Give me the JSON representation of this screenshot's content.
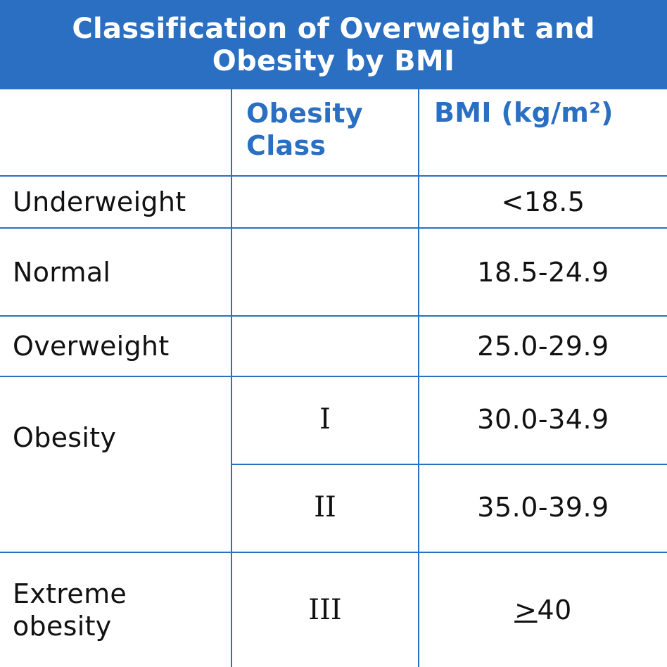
{
  "title": {
    "line1": "Classification of Overweight and",
    "line2": "Obesity by BMI"
  },
  "columns": {
    "category": "",
    "obesity_class_line1": "Obesity",
    "obesity_class_line2": "Class",
    "bmi": "BMI (kg/m²)"
  },
  "rows": [
    {
      "category": "Underweight",
      "class": "",
      "bmi": "<18.5"
    },
    {
      "category": "Normal",
      "class": "",
      "bmi": "18.5-24.9"
    },
    {
      "category": "Overweight",
      "class": "",
      "bmi": "25.0-29.9"
    },
    {
      "category": "Obesity",
      "classes": [
        {
          "class": "I",
          "bmi": "30.0-34.9"
        },
        {
          "class": "II",
          "bmi": "35.0-39.9"
        }
      ]
    },
    {
      "category_line1": "Extreme",
      "category_line2": "obesity",
      "class": "III",
      "bmi_symbol": ">",
      "bmi_value": "40"
    }
  ],
  "colors": {
    "accent": "#2a6fc1",
    "text": "#111111",
    "background": "#ffffff"
  }
}
